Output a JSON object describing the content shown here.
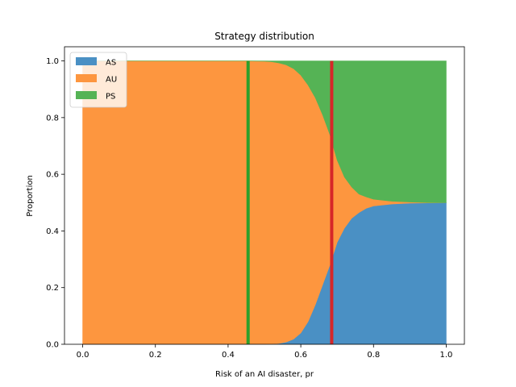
{
  "chart_data": {
    "type": "area",
    "stacked": true,
    "title": "Strategy distribution",
    "xlabel": "Risk of an AI disaster, pr",
    "ylabel": "Proportion",
    "xlim": [
      -0.05,
      1.05
    ],
    "ylim": [
      0.0,
      1.05
    ],
    "xticks": [
      "0.0",
      "0.2",
      "0.4",
      "0.6",
      "0.8",
      "1.0"
    ],
    "yticks": [
      "0.0",
      "0.2",
      "0.4",
      "0.6",
      "0.8",
      "1.0"
    ],
    "grid": false,
    "legend_position": "top-left",
    "x": [
      0.0,
      0.45,
      0.5,
      0.52,
      0.54,
      0.56,
      0.58,
      0.6,
      0.62,
      0.64,
      0.66,
      0.68,
      0.7,
      0.72,
      0.74,
      0.76,
      0.78,
      0.8,
      0.85,
      0.9,
      0.95,
      1.0
    ],
    "series": [
      {
        "name": "AS",
        "color": "#4a90c4",
        "values": [
          0.0,
          0.0,
          0.0,
          0.001,
          0.003,
          0.008,
          0.018,
          0.04,
          0.08,
          0.14,
          0.21,
          0.28,
          0.36,
          0.41,
          0.445,
          0.465,
          0.48,
          0.488,
          0.495,
          0.498,
          0.499,
          0.5
        ]
      },
      {
        "name": "AU",
        "color": "#fd963f",
        "values": [
          1.0,
          1.0,
          0.999,
          0.996,
          0.99,
          0.978,
          0.955,
          0.91,
          0.835,
          0.73,
          0.6,
          0.46,
          0.29,
          0.18,
          0.11,
          0.065,
          0.04,
          0.024,
          0.01,
          0.004,
          0.001,
          0.0
        ]
      },
      {
        "name": "PS",
        "color": "#55b355",
        "values": [
          0.0,
          0.0,
          0.001,
          0.003,
          0.007,
          0.014,
          0.027,
          0.05,
          0.085,
          0.13,
          0.19,
          0.26,
          0.35,
          0.41,
          0.445,
          0.47,
          0.48,
          0.488,
          0.495,
          0.498,
          0.5,
          0.5
        ]
      }
    ],
    "vlines": [
      {
        "x": 0.455,
        "color": "#2ca02c"
      },
      {
        "x": 0.685,
        "color": "#d62728"
      }
    ]
  }
}
